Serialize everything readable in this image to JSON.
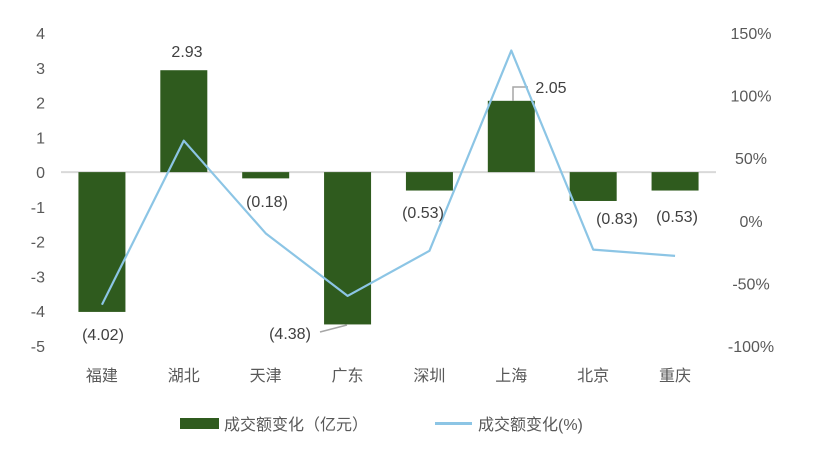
{
  "chart_data": {
    "type": "bar",
    "subtype": "combo-bar-line-dual-axis",
    "title": "",
    "categories": [
      "福建",
      "湖北",
      "天津",
      "广东",
      "深圳",
      "上海",
      "北京",
      "重庆"
    ],
    "series": [
      {
        "name": "成交额变化（亿元）",
        "type": "bar",
        "axis": "left",
        "values": [
          -4.02,
          2.93,
          -0.18,
          -4.38,
          -0.53,
          2.05,
          -0.83,
          -0.53
        ],
        "data_labels": [
          "(4.02)",
          "2.93",
          "(0.18)",
          "(4.38)",
          "(0.53)",
          "2.05",
          "(0.83)",
          "(0.53)"
        ]
      },
      {
        "name": "成交额变化(%)",
        "type": "line",
        "axis": "right",
        "values": [
          -67,
          64,
          -10,
          -60,
          -24,
          136,
          -23,
          -28
        ]
      }
    ],
    "left_axis": {
      "ticks": [
        "4",
        "3",
        "2",
        "1",
        "0",
        "-1",
        "-2",
        "-3",
        "-4",
        "-5"
      ],
      "min": -5,
      "max": 4
    },
    "right_axis": {
      "ticks": [
        "150%",
        "100%",
        "50%",
        "0%",
        "-50%",
        "-100%"
      ],
      "min": -100,
      "max": 150
    },
    "grid": "zero-line-only",
    "legend_position": "bottom",
    "legend": [
      {
        "label": "成交额变化（亿元）",
        "swatch": "bar"
      },
      {
        "label": "成交额变化(%)",
        "swatch": "line"
      }
    ],
    "colors": {
      "bar": "#2F5B1E",
      "line": "#8CC5E5",
      "zero_line": "#D9D9D9",
      "leader_line": "#A6A6A6",
      "tick_text": "#595959",
      "category_text": "#595959",
      "data_label_text": "#404040",
      "background": "#FFFFFF"
    }
  }
}
